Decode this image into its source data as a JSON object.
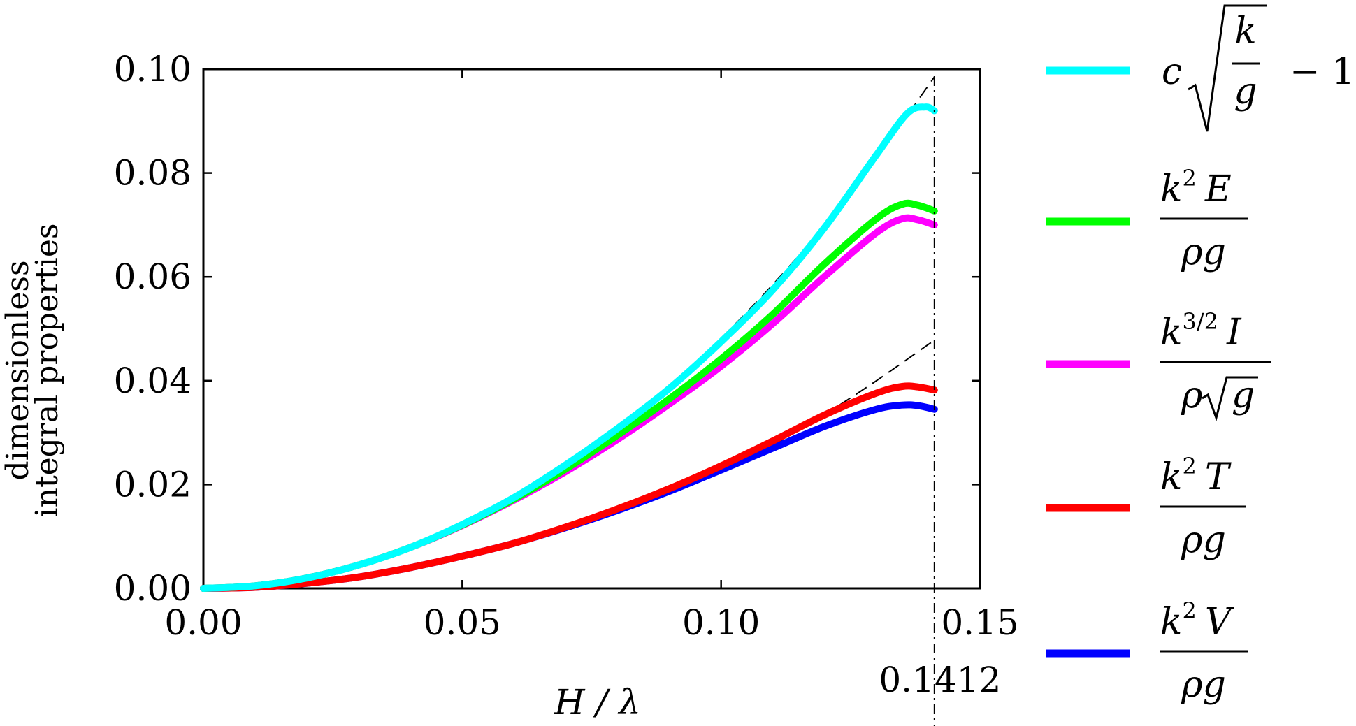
{
  "chart_data": {
    "type": "line",
    "xlabel": "H / λ",
    "ylabel_lines": [
      "dimensionless",
      "integral properties"
    ],
    "xlim": [
      0.0,
      0.15
    ],
    "ylim": [
      0.0,
      0.1
    ],
    "xticks": [
      0.0,
      0.05,
      0.1,
      0.15
    ],
    "xtick_labels": [
      "0.00",
      "0.05",
      "0.10",
      "0.15"
    ],
    "yticks": [
      0.0,
      0.02,
      0.04,
      0.06,
      0.08,
      0.1
    ],
    "ytick_labels": [
      "0.00",
      "0.02",
      "0.04",
      "0.06",
      "0.08",
      "0.10"
    ],
    "vertical_line": {
      "x": 0.1412,
      "label": "0.1412",
      "style": "dash-dot"
    },
    "grid": false,
    "legend_position": "right",
    "series": [
      {
        "name": "c√(k/g) − 1",
        "color": "#00ffff",
        "x": [
          0,
          0.01,
          0.02,
          0.03,
          0.04,
          0.05,
          0.06,
          0.07,
          0.08,
          0.09,
          0.1,
          0.11,
          0.12,
          0.13,
          0.136,
          0.1395,
          0.1412
        ],
        "y": [
          0,
          0.0005,
          0.002,
          0.0045,
          0.0079,
          0.0123,
          0.0175,
          0.0238,
          0.0308,
          0.0385,
          0.0475,
          0.0575,
          0.0695,
          0.0835,
          0.0915,
          0.0927,
          0.092
        ]
      },
      {
        "name": "k² E / ρg",
        "color": "#00ff00",
        "x": [
          0,
          0.01,
          0.02,
          0.03,
          0.04,
          0.05,
          0.06,
          0.07,
          0.08,
          0.09,
          0.1,
          0.11,
          0.12,
          0.13,
          0.135,
          0.138,
          0.1412
        ],
        "y": [
          0,
          0.0005,
          0.002,
          0.0045,
          0.0079,
          0.0122,
          0.0172,
          0.023,
          0.0295,
          0.0365,
          0.0442,
          0.0528,
          0.0625,
          0.0712,
          0.074,
          0.0738,
          0.0727
        ]
      },
      {
        "name": "k^{3/2} I / ρ√g",
        "color": "#ff00ff",
        "x": [
          0,
          0.01,
          0.02,
          0.03,
          0.04,
          0.05,
          0.06,
          0.07,
          0.08,
          0.09,
          0.1,
          0.11,
          0.12,
          0.13,
          0.135,
          0.138,
          0.1412
        ],
        "y": [
          0,
          0.0005,
          0.002,
          0.0045,
          0.0079,
          0.0121,
          0.017,
          0.0225,
          0.0287,
          0.0355,
          0.0428,
          0.051,
          0.0601,
          0.0685,
          0.0712,
          0.071,
          0.07
        ]
      },
      {
        "name": "k² T / ρg",
        "color": "#ff0000",
        "x": [
          0,
          0.01,
          0.02,
          0.03,
          0.04,
          0.05,
          0.06,
          0.07,
          0.08,
          0.09,
          0.1,
          0.11,
          0.12,
          0.13,
          0.135,
          0.138,
          0.1412
        ],
        "y": [
          0,
          0.0002,
          0.001,
          0.0022,
          0.004,
          0.0062,
          0.0087,
          0.0118,
          0.0153,
          0.0192,
          0.0236,
          0.0284,
          0.0334,
          0.0376,
          0.0389,
          0.0388,
          0.0382
        ]
      },
      {
        "name": "k² V / ρg",
        "color": "#0000ff",
        "x": [
          0,
          0.01,
          0.02,
          0.03,
          0.04,
          0.05,
          0.06,
          0.07,
          0.08,
          0.09,
          0.1,
          0.11,
          0.12,
          0.13,
          0.135,
          0.138,
          0.1412
        ],
        "y": [
          0,
          0.0002,
          0.001,
          0.0022,
          0.004,
          0.0062,
          0.0087,
          0.0117,
          0.015,
          0.0187,
          0.0228,
          0.027,
          0.0312,
          0.0345,
          0.0353,
          0.0352,
          0.0345
        ]
      }
    ],
    "reference_lines": [
      {
        "x": [
          0.08,
          0.09,
          0.1,
          0.11,
          0.12,
          0.13,
          0.1412
        ],
        "y": [
          0.0308,
          0.039,
          0.0482,
          0.0585,
          0.07,
          0.0828,
          0.0985
        ],
        "style": "dashed"
      },
      {
        "x": [
          0.11,
          0.12,
          0.13,
          0.1412
        ],
        "y": [
          0.0275,
          0.0335,
          0.04,
          0.0478
        ],
        "style": "dashed"
      }
    ],
    "legend": [
      {
        "color": "#00ffff",
        "parts": {
          "c": "c",
          "num": "k",
          "den": "g",
          "tail": "− 1"
        }
      },
      {
        "color": "#00ff00",
        "parts": {
          "base": "k",
          "sup": "2",
          "sym": "E",
          "den_a": "ρ",
          "den_b": "g"
        }
      },
      {
        "color": "#ff00ff",
        "parts": {
          "base": "k",
          "sup": "3/2",
          "sym": "I",
          "den_a": "ρ",
          "den_b": "g"
        }
      },
      {
        "color": "#ff0000",
        "parts": {
          "base": "k",
          "sup": "2",
          "sym": "T",
          "den_a": "ρ",
          "den_b": "g"
        }
      },
      {
        "color": "#0000ff",
        "parts": {
          "base": "k",
          "sup": "2",
          "sym": "V",
          "den_a": "ρ",
          "den_b": "g"
        }
      }
    ]
  }
}
